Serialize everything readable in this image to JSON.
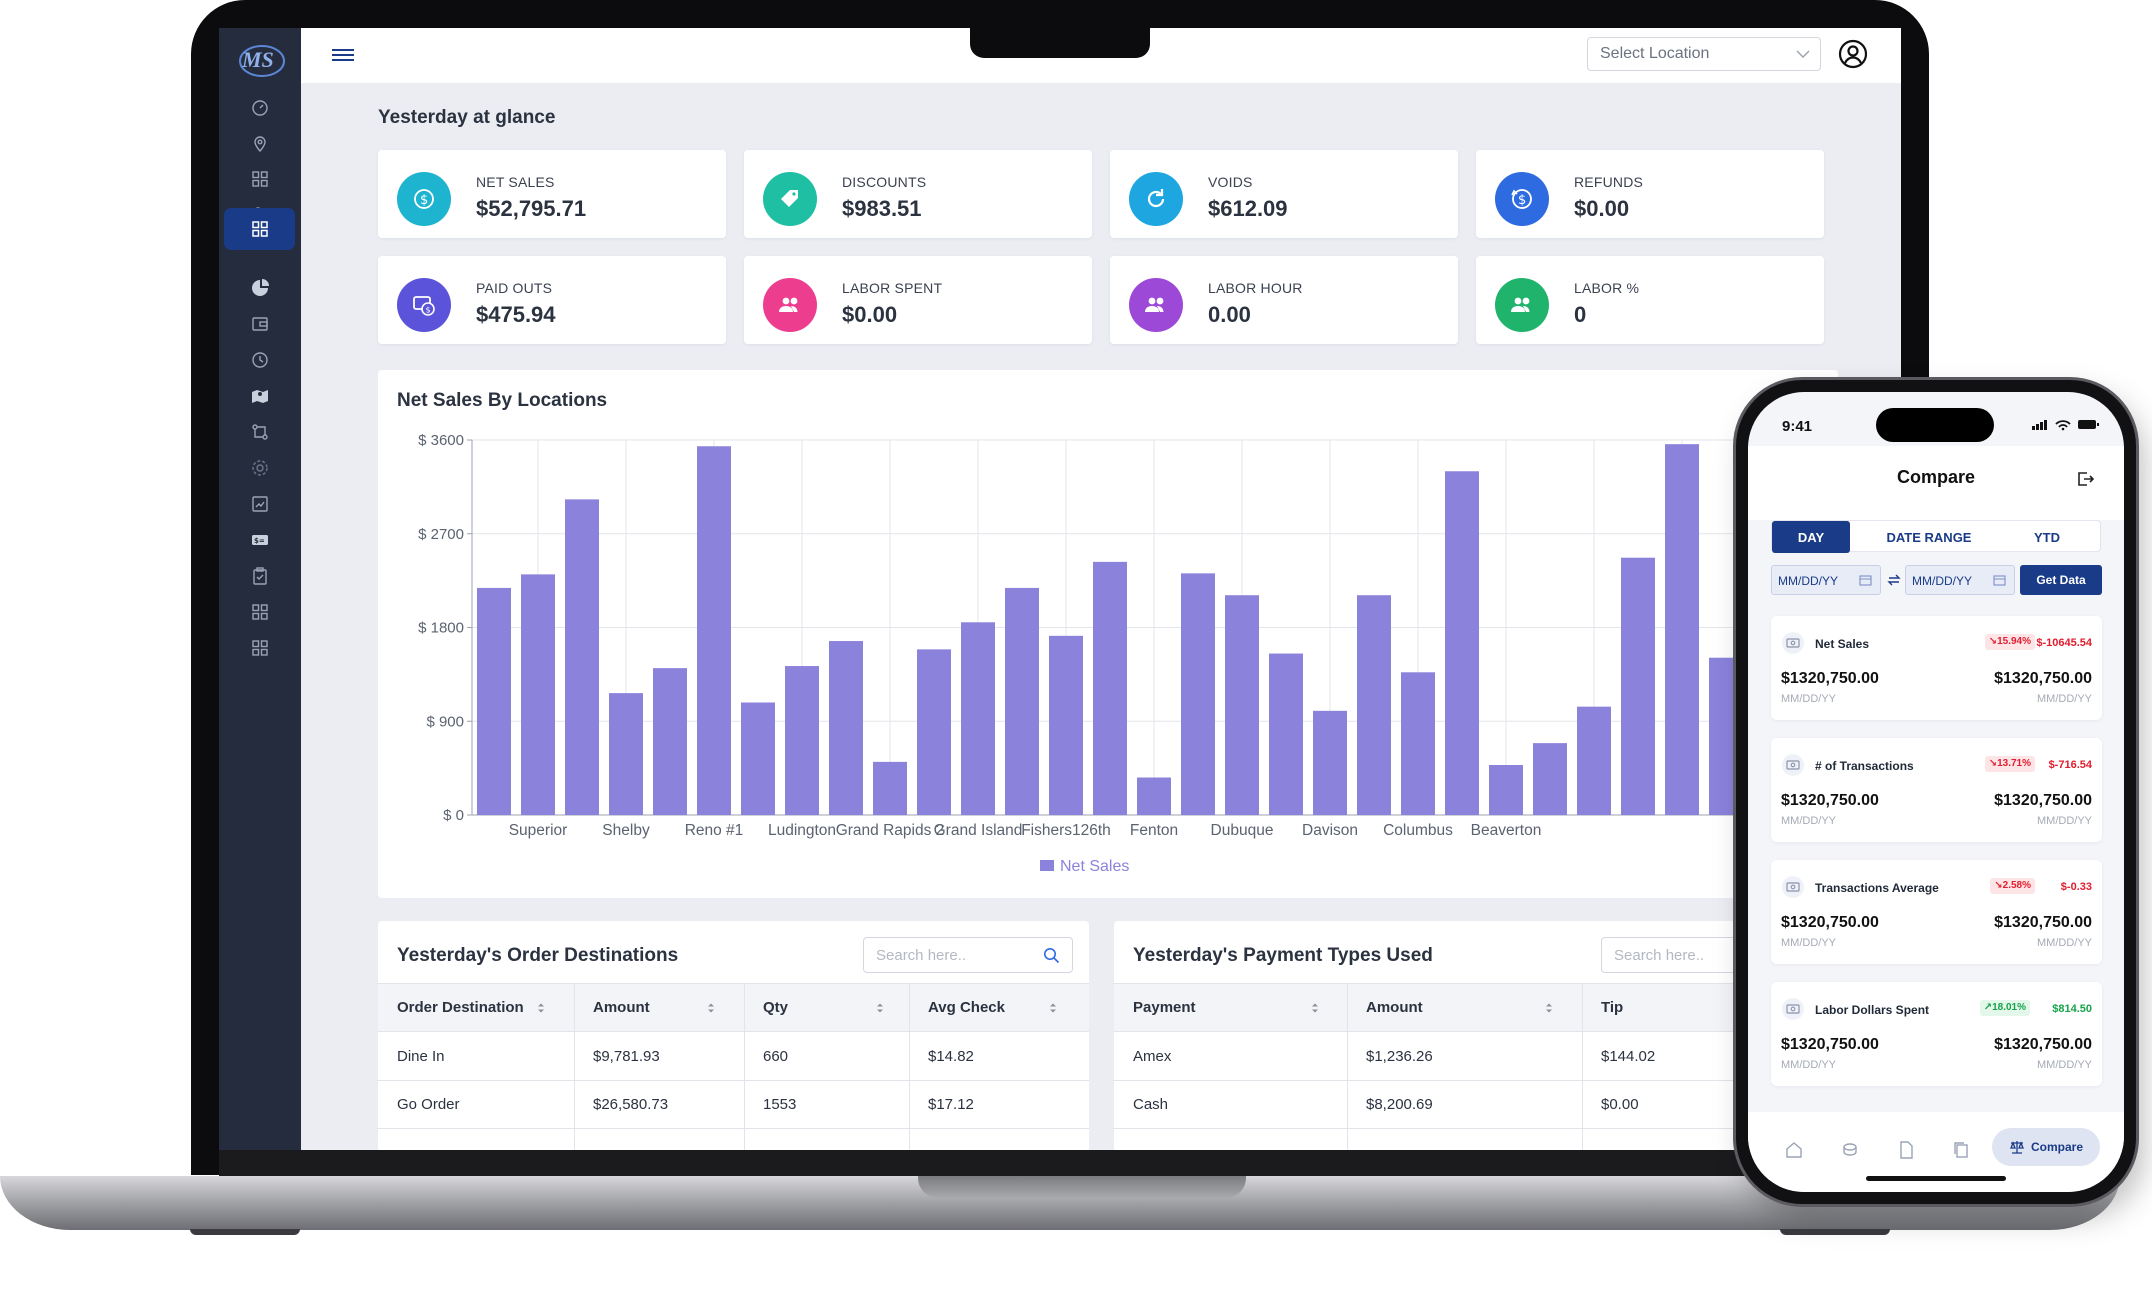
{
  "topbar": {
    "location_placeholder": "Select Location"
  },
  "dashboard": {
    "section_title": "Yesterday at glance",
    "kpis": [
      {
        "label": "NET SALES",
        "value": "$52,795.71",
        "color": "#1eb4cf",
        "icon": "dollar-icon"
      },
      {
        "label": "DISCOUNTS",
        "value": "$983.51",
        "color": "#1fbfa4",
        "icon": "tag-icon"
      },
      {
        "label": "VOIDS",
        "value": "$612.09",
        "color": "#1ea6e0",
        "icon": "refresh-icon"
      },
      {
        "label": "REFUNDS",
        "value": "$0.00",
        "color": "#2f6be0",
        "icon": "refund-icon"
      },
      {
        "label": "PAID OUTS",
        "value": "$475.94",
        "color": "#5b53d9",
        "icon": "paid-out-icon"
      },
      {
        "label": "LABOR SPENT",
        "value": "$0.00",
        "color": "#ec3d8f",
        "icon": "users-icon"
      },
      {
        "label": "LABOR HOUR",
        "value": "0.00",
        "color": "#9b49d6",
        "icon": "users-icon"
      },
      {
        "label": "LABOR %",
        "value": "0",
        "color": "#1fb36b",
        "icon": "users-icon"
      }
    ]
  },
  "chart": {
    "title": "Net Sales By Locations",
    "bar_color": "#8b82db"
  },
  "chart_data": {
    "type": "bar",
    "title": "Net Sales By Locations",
    "ylim": [
      0,
      3600
    ],
    "y_ticks": [
      "$ 0",
      "$ 900",
      "$ 1800",
      "$ 2700",
      "$ 3600"
    ],
    "y_tick_values": [
      0,
      900,
      1800,
      2700,
      3600
    ],
    "categories": [
      "",
      "Superior",
      "",
      "Shelby",
      "",
      "Reno #1",
      "",
      "Ludington",
      "",
      "Grand Rapids 2",
      "",
      "Grand Island",
      "",
      "Fishers126th",
      "",
      "Fenton",
      "",
      "Dubuque",
      "",
      "Davison",
      "",
      "Columbus",
      "",
      "Beaverton",
      "",
      "",
      "",
      "",
      ""
    ],
    "series": [
      {
        "name": "Net Sales",
        "values": [
          2180,
          2310,
          3030,
          1170,
          1410,
          3540,
          1080,
          1430,
          1670,
          510,
          1590,
          1850,
          2180,
          1720,
          2430,
          360,
          2320,
          2110,
          1550,
          1000,
          2110,
          1370,
          3300,
          480,
          690,
          1040,
          2470,
          3560,
          1510
        ]
      }
    ],
    "legend": "bottom-center"
  },
  "order_table": {
    "title": "Yesterday's Order Destinations",
    "search_placeholder": "Search here..",
    "headers": [
      "Order Destination",
      "Amount",
      "Qty",
      "Avg Check"
    ],
    "rows": [
      [
        "Dine In",
        "$9,781.93",
        "660",
        "$14.82"
      ],
      [
        "Go Order",
        "$26,580.73",
        "1553",
        "$17.12"
      ]
    ]
  },
  "payment_table": {
    "title": "Yesterday's Payment Types Used",
    "search_placeholder": "Search here..",
    "headers": [
      "Payment",
      "Amount",
      "Tip"
    ],
    "rows": [
      [
        "Amex",
        "$1,236.26",
        "$144.02"
      ],
      [
        "Cash",
        "$8,200.69",
        "$0.00"
      ]
    ]
  },
  "phone": {
    "time": "9:41",
    "title": "Compare",
    "tabs": [
      "DAY",
      "DATE RANGE",
      "YTD"
    ],
    "date_placeholder": "MM/DD/YY",
    "get_data": "Get Data",
    "cards": [
      {
        "name": "Net Sales",
        "pct": "↘15.94%",
        "diff": "$-10645.54",
        "trend": "down",
        "v1": "$1320,750.00",
        "v2": "$1320,750.00",
        "d1": "MM/DD/YY",
        "d2": "MM/DD/YY"
      },
      {
        "name": "# of Transactions",
        "pct": "↘13.71%",
        "diff": "$-716.54",
        "trend": "down",
        "v1": "$1320,750.00",
        "v2": "$1320,750.00",
        "d1": "MM/DD/YY",
        "d2": "MM/DD/YY"
      },
      {
        "name": "Transactions Average",
        "pct": "↘2.58%",
        "diff": "$-0.33",
        "trend": "down",
        "v1": "$1320,750.00",
        "v2": "$1320,750.00",
        "d1": "MM/DD/YY",
        "d2": "MM/DD/YY"
      },
      {
        "name": "Labor Dollars Spent",
        "pct": "↗18.01%",
        "diff": "$814.50",
        "trend": "up",
        "v1": "$1320,750.00",
        "v2": "$1320,750.00",
        "d1": "MM/DD/YY",
        "d2": "MM/DD/YY"
      }
    ],
    "nav_active": "Compare"
  }
}
